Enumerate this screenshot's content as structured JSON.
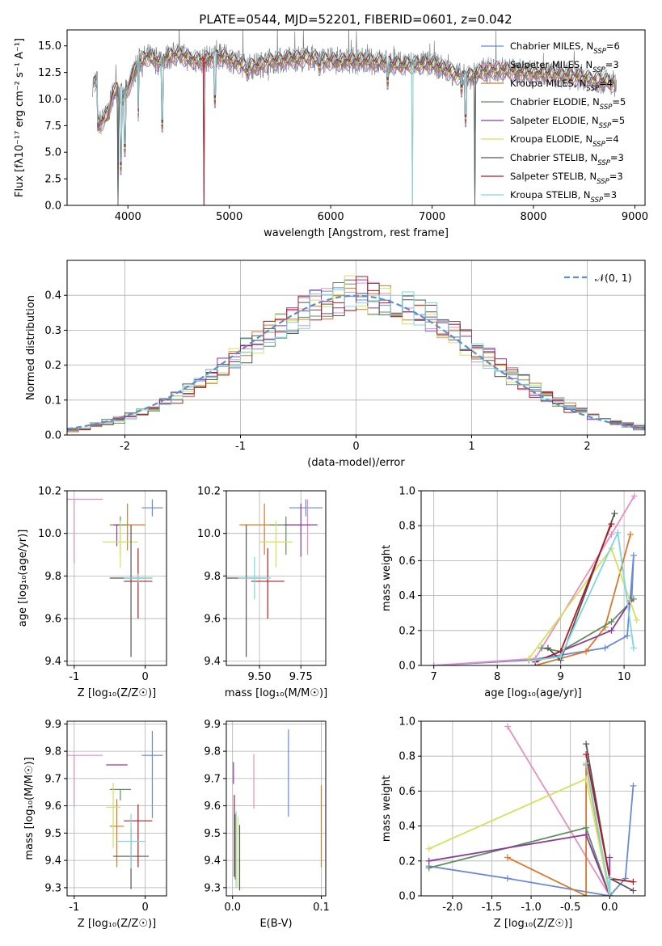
{
  "figure_title": "PLATE=0544, MJD=52201, FIBERID=0601, z=0.042",
  "colors": [
    "#6b89d9",
    "#e88fc2",
    "#d8782a",
    "#5e8f5e",
    "#8d3a9f",
    "#d3e25c",
    "#555555",
    "#b01c24",
    "#7dd6e3"
  ],
  "chart_data": [
    {
      "id": "spectrum",
      "type": "line",
      "title": "PLATE=0544, MJD=52201, FIBERID=0601, z=0.042",
      "xlabel": "wavelength [Angstrom, rest frame]",
      "ylabel": "Flux [fλ10⁻¹⁷ erg cm⁻² s⁻¹ A⁻¹]",
      "xlim": [
        3400,
        9100
      ],
      "ylim": [
        0,
        16.5
      ],
      "xticks": [
        4000,
        5000,
        6000,
        7000,
        8000,
        9000
      ],
      "yticks": [
        0.0,
        2.5,
        5.0,
        7.5,
        10.0,
        12.5,
        15.0
      ],
      "grid": false,
      "legend_position": "top-right",
      "data": {
        "x": [
          3700,
          3750,
          3800,
          3850,
          3900,
          3950,
          4000,
          4100,
          4200,
          4300,
          4400,
          4500,
          4600,
          4700,
          4800,
          4900,
          5000,
          5100,
          5200,
          5300,
          5400,
          5500,
          5600,
          5700,
          5800,
          5900,
          6000,
          6100,
          6200,
          6300,
          6400,
          6500,
          6600,
          6700,
          6800,
          6900,
          7000,
          7100,
          7200,
          7300,
          7400,
          7500,
          7600,
          7700,
          7800,
          7900,
          8000,
          8100,
          8200,
          8300,
          8400,
          8500,
          8600,
          8700,
          8800
        ],
        "y": [
          7.5,
          8.0,
          8.5,
          10.5,
          11.0,
          10.0,
          11.0,
          13.5,
          14.0,
          13.5,
          14.0,
          14.2,
          13.8,
          13.6,
          13.8,
          14.0,
          13.8,
          13.3,
          13.0,
          13.2,
          13.6,
          13.6,
          13.8,
          13.8,
          13.9,
          13.7,
          13.6,
          13.5,
          13.6,
          13.6,
          13.5,
          13.5,
          13.3,
          13.2,
          13.3,
          13.3,
          13.3,
          12.9,
          12.5,
          12.0,
          12.2,
          12.6,
          12.8,
          12.7,
          12.6,
          12.5,
          12.4,
          12.4,
          12.3,
          12.2,
          12.1,
          12.0,
          11.8,
          11.7,
          11.5
        ]
      },
      "series": [
        {
          "name": "Chabrier MILES, N_SSP=6"
        },
        {
          "name": "Salpeter MILES, N_SSP=3"
        },
        {
          "name": "Kroupa MILES, N_SSP=4"
        },
        {
          "name": "Chabrier ELODIE, N_SSP=5"
        },
        {
          "name": "Salpeter ELODIE, N_SSP=5"
        },
        {
          "name": "Kroupa ELODIE, N_SSP=4"
        },
        {
          "name": "Chabrier STELIB, N_SSP=3"
        },
        {
          "name": "Salpeter STELIB, N_SSP=3"
        },
        {
          "name": "Kroupa STELIB, N_SSP=3"
        }
      ]
    },
    {
      "id": "residuals",
      "type": "line",
      "xlabel": "(data-model)/error",
      "ylabel": "Normed distribution",
      "xlim": [
        -2.5,
        2.5
      ],
      "ylim": [
        0,
        0.5
      ],
      "xticks": [
        -2,
        -1,
        0,
        1,
        2
      ],
      "yticks": [
        0.0,
        0.1,
        0.2,
        0.3,
        0.4
      ],
      "grid": true,
      "legend_position": "top-right",
      "legend_label": "𝒩(0, 1)",
      "bin_edges_range": [
        -2.5,
        2.5
      ],
      "bins": 50
    },
    {
      "id": "age_vs_Z",
      "type": "scatter",
      "xlabel": "Z [log₁₀(Z/Z☉)]",
      "ylabel": "age  [log₁₀(age/yr)]",
      "xlim": [
        -1.1,
        0.3
      ],
      "ylim": [
        9.38,
        10.2
      ],
      "xticks": [
        -1,
        0
      ],
      "yticks": [
        9.4,
        9.6,
        9.8,
        10.0,
        10.2
      ],
      "grid": true,
      "points": [
        {
          "x": 0.1,
          "y": 10.12,
          "xerr": 0.15,
          "yerr_lo": 0.04,
          "yerr_hi": 0.04
        },
        {
          "x": -1.0,
          "y": 10.16,
          "xerr": 0.4,
          "yerr_lo": 0.3,
          "yerr_hi": 0.0
        },
        {
          "x": -0.25,
          "y": 10.04,
          "xerr": 0.25,
          "yerr_lo": 0.12,
          "yerr_hi": 0.1
        },
        {
          "x": -0.35,
          "y": 10.04,
          "xerr": 0.1,
          "yerr_lo": 0.14,
          "yerr_hi": 0.04
        },
        {
          "x": -0.4,
          "y": 10.04,
          "xerr": 0.05,
          "yerr_lo": 0.1,
          "yerr_hi": 0.0
        },
        {
          "x": -0.35,
          "y": 9.96,
          "xerr": 0.25,
          "yerr_lo": 0.12,
          "yerr_hi": 0.1
        },
        {
          "x": -0.2,
          "y": 9.79,
          "xerr": 0.3,
          "yerr_lo": 0.37,
          "yerr_hi": 0.25
        },
        {
          "x": -0.1,
          "y": 9.775,
          "xerr": 0.2,
          "yerr_lo": 0.175,
          "yerr_hi": 0.155
        },
        {
          "x": -0.1,
          "y": 9.79,
          "xerr": 0.2,
          "yerr_lo": 0.02,
          "yerr_hi": 0.02
        }
      ]
    },
    {
      "id": "age_vs_mass",
      "type": "scatter",
      "xlabel": "mass [log₁₀(M/M☉)]",
      "xlim": [
        9.3,
        9.9
      ],
      "ylim": [
        9.38,
        10.2
      ],
      "xticks": [
        9.5,
        9.75
      ],
      "yticks": [
        9.4,
        9.6,
        9.8,
        10.0,
        10.2
      ],
      "grid": true,
      "points": [
        {
          "x": 9.78,
          "y": 10.12,
          "xerr": 0.1,
          "yerr_lo": 0.04,
          "yerr_hi": 0.04
        },
        {
          "x": 9.79,
          "y": 10.16,
          "xerr": 0.0,
          "yerr_lo": 0.26,
          "yerr_hi": 0.0
        },
        {
          "x": 9.53,
          "y": 10.04,
          "xerr": 0.15,
          "yerr_lo": 0.14,
          "yerr_hi": 0.1
        },
        {
          "x": 9.66,
          "y": 10.04,
          "xerr": 0.1,
          "yerr_lo": 0.14,
          "yerr_hi": 0.04
        },
        {
          "x": 9.75,
          "y": 10.04,
          "xerr": 0.1,
          "yerr_lo": 0.15,
          "yerr_hi": 0.1
        },
        {
          "x": 9.6,
          "y": 9.96,
          "xerr": 0.1,
          "yerr_lo": 0.12,
          "yerr_hi": 0.1
        },
        {
          "x": 9.42,
          "y": 9.79,
          "xerr": 0.12,
          "yerr_lo": 0.37,
          "yerr_hi": 0.25
        },
        {
          "x": 9.55,
          "y": 9.775,
          "xerr": 0.1,
          "yerr_lo": 0.175,
          "yerr_hi": 0.155
        },
        {
          "x": 9.47,
          "y": 9.79,
          "xerr": 0.1,
          "yerr_lo": 0.1,
          "yerr_hi": 0.1
        }
      ]
    },
    {
      "id": "mass_weight_vs_age",
      "type": "line",
      "xlabel": "age  [log₁₀(age/yr)]",
      "ylabel": "mass weight",
      "xlim": [
        6.8,
        10.33
      ],
      "ylim": [
        0,
        1.0
      ],
      "xticks": [
        7,
        8,
        9,
        10
      ],
      "yticks": [
        0.0,
        0.2,
        0.4,
        0.6,
        0.8,
        1.0
      ],
      "grid": true,
      "series": [
        {
          "x": [
            7.0,
            8.5,
            9.7,
            10.05,
            10.15,
            10.12
          ],
          "y": [
            0.0,
            0.03,
            0.1,
            0.17,
            0.63,
            0.38
          ]
        },
        {
          "x": [
            7.0,
            8.6,
            9.8,
            10.16
          ],
          "y": [
            0.0,
            0.04,
            0.75,
            0.97
          ]
        },
        {
          "x": [
            8.6,
            9.4,
            9.7,
            10.1
          ],
          "y": [
            0.0,
            0.08,
            0.22,
            0.75
          ]
        },
        {
          "x": [
            8.7,
            9.0,
            9.8,
            10.15
          ],
          "y": [
            0.1,
            0.08,
            0.25,
            0.38
          ]
        },
        {
          "x": [
            8.6,
            9.8,
            10.1
          ],
          "y": [
            0.02,
            0.2,
            0.37
          ]
        },
        {
          "x": [
            8.5,
            9.8,
            10.2
          ],
          "y": [
            0.04,
            0.67,
            0.26
          ]
        },
        {
          "x": [
            8.8,
            9.0,
            9.85
          ],
          "y": [
            0.1,
            0.03,
            0.87
          ]
        },
        {
          "x": [
            8.6,
            9.0,
            9.8
          ],
          "y": [
            0.02,
            0.08,
            0.81
          ]
        },
        {
          "x": [
            8.6,
            9.0,
            9.9,
            10.15
          ],
          "y": [
            0.03,
            0.05,
            0.76,
            0.1
          ]
        }
      ]
    },
    {
      "id": "mass_vs_Z",
      "type": "scatter",
      "xlabel": "Z [log₁₀(Z/Z☉)]",
      "ylabel": "mass [log₁₀(M/M☉)]",
      "xlim": [
        -1.1,
        0.3
      ],
      "ylim": [
        9.27,
        9.91
      ],
      "xticks": [
        -1,
        0
      ],
      "yticks": [
        9.3,
        9.4,
        9.5,
        9.6,
        9.7,
        9.8,
        9.9
      ],
      "grid": true,
      "points": [
        {
          "x": 0.1,
          "y": 9.785,
          "xerr": 0.15,
          "yerr_lo": 0.23,
          "yerr_hi": 0.09
        },
        {
          "x": -1.0,
          "y": 9.785,
          "xerr": 0.4,
          "yerr_lo": 0.19,
          "yerr_hi": 0.0
        },
        {
          "x": -0.4,
          "y": 9.525,
          "xerr": 0.1,
          "yerr_lo": 0.15,
          "yerr_hi": 0.1
        },
        {
          "x": -0.35,
          "y": 9.66,
          "xerr": 0.15,
          "yerr_lo": 0.04,
          "yerr_hi": 0.0
        },
        {
          "x": -0.4,
          "y": 9.75,
          "xerr": 0.15,
          "yerr_lo": 0.0,
          "yerr_hi": 0.0
        },
        {
          "x": -0.45,
          "y": 9.595,
          "xerr": 0.1,
          "yerr_lo": 0.15,
          "yerr_hi": 0.09
        },
        {
          "x": -0.2,
          "y": 9.415,
          "xerr": 0.25,
          "yerr_lo": 0.12,
          "yerr_hi": 0.1
        },
        {
          "x": -0.1,
          "y": 9.545,
          "xerr": 0.2,
          "yerr_lo": 0.17,
          "yerr_hi": 0.06
        },
        {
          "x": -0.2,
          "y": 9.47,
          "xerr": 0.2,
          "yerr_lo": 0.1,
          "yerr_hi": 0.1
        }
      ]
    },
    {
      "id": "mass_vs_ebv",
      "type": "scatter",
      "xlabel": "E(B-V)",
      "xlim": [
        -0.007,
        0.105
      ],
      "ylim": [
        9.27,
        9.91
      ],
      "xticks": [
        0.0,
        0.1
      ],
      "yticks": [
        9.3,
        9.4,
        9.5,
        9.6,
        9.7,
        9.8,
        9.9
      ],
      "grid": true,
      "points": [
        {
          "x": 0.063,
          "y": 9.72,
          "yerr_lo": 0.16,
          "yerr_hi": 0.16
        },
        {
          "x": 0.024,
          "y": 9.69,
          "yerr_lo": 0.1,
          "yerr_hi": 0.1
        },
        {
          "x": 0.1,
          "y": 9.525,
          "yerr_lo": 0.15,
          "yerr_hi": 0.15
        },
        {
          "x": 0.003,
          "y": 9.45,
          "yerr_lo": 0.12,
          "yerr_hi": 0.12
        },
        {
          "x": 0.001,
          "y": 9.72,
          "yerr_lo": 0.04,
          "yerr_hi": 0.04
        },
        {
          "x": 0.006,
          "y": 9.43,
          "yerr_lo": 0.13,
          "yerr_hi": 0.13
        },
        {
          "x": 0.008,
          "y": 9.41,
          "yerr_lo": 0.12,
          "yerr_hi": 0.12
        },
        {
          "x": 0.002,
          "y": 9.49,
          "yerr_lo": 0.15,
          "yerr_hi": 0.15
        },
        {
          "x": 0.004,
          "y": 9.44,
          "yerr_lo": 0.14,
          "yerr_hi": 0.14
        }
      ]
    },
    {
      "id": "mass_weight_vs_Z",
      "type": "line",
      "xlabel": "Z [log₁₀(Z/Z☉)]",
      "ylabel": "mass weight",
      "xlim": [
        -2.4,
        0.45
      ],
      "ylim": [
        0,
        1.0
      ],
      "xticks": [
        -2.0,
        -1.5,
        -1.0,
        -0.5,
        0.0
      ],
      "yticks": [
        0.0,
        0.2,
        0.4,
        0.6,
        0.8,
        1.0
      ],
      "grid": true,
      "series": [
        {
          "x": [
            -2.3,
            -1.3,
            0.0,
            0.2,
            0.3
          ],
          "y": [
            0.17,
            0.1,
            0.0,
            0.1,
            0.63
          ]
        },
        {
          "x": [
            -1.3,
            0.0
          ],
          "y": [
            0.97,
            0.0
          ]
        },
        {
          "x": [
            -1.3,
            -0.3,
            -0.3,
            0.0
          ],
          "y": [
            0.22,
            0.0,
            0.75,
            0.0
          ]
        },
        {
          "x": [
            -2.3,
            -0.3,
            0.0
          ],
          "y": [
            0.16,
            0.39,
            0.0
          ]
        },
        {
          "x": [
            -2.3,
            -0.3,
            0.0,
            0.0
          ],
          "y": [
            0.2,
            0.35,
            0.0,
            0.22
          ]
        },
        {
          "x": [
            -2.3,
            -0.3,
            0.0
          ],
          "y": [
            0.27,
            0.67,
            0.0
          ]
        },
        {
          "x": [
            -0.3,
            0.0,
            0.3
          ],
          "y": [
            0.87,
            0.1,
            0.03
          ]
        },
        {
          "x": [
            -0.3,
            0.0,
            0.3
          ],
          "y": [
            0.81,
            0.1,
            0.08
          ]
        },
        {
          "x": [
            -0.3,
            0.0,
            0.0
          ],
          "y": [
            0.76,
            0.02,
            0.1
          ]
        }
      ]
    }
  ]
}
